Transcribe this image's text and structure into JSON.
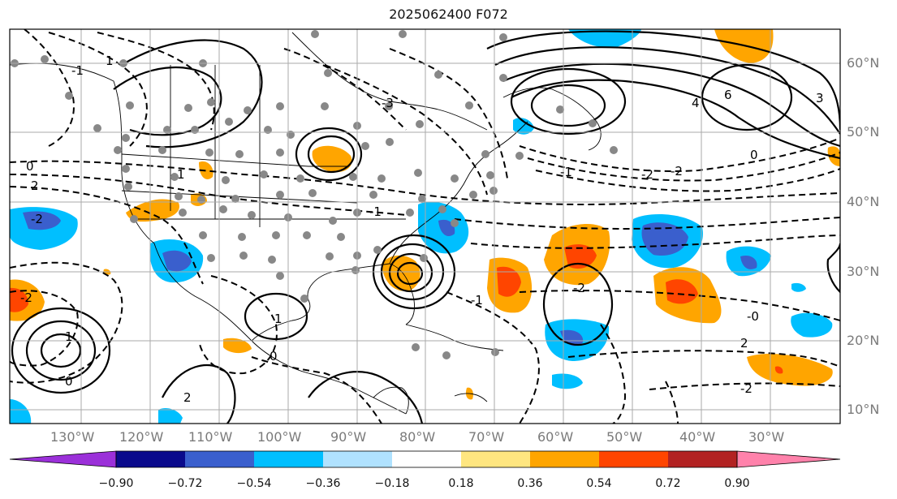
{
  "title": "2025062400 F072",
  "lat_labels": [
    "60°N",
    "50°N",
    "40°N",
    "30°N",
    "20°N",
    "10°N"
  ],
  "lon_labels": [
    "130°W",
    "120°W",
    "110°W",
    "100°W",
    "90°W",
    "80°W",
    "70°W",
    "60°W",
    "50°W",
    "40°W",
    "30°W"
  ],
  "colorbar": {
    "ticks": [
      "−0.90",
      "−0.72",
      "−0.54",
      "−0.36",
      "−0.18",
      "0.18",
      "0.36",
      "0.54",
      "0.72",
      "0.90"
    ],
    "colors": [
      "#9b30d9",
      "#0a0a8c",
      "#3a5fcd",
      "#00bfff",
      "#b0e2ff",
      "#ffffff",
      "#ffe680",
      "#ffa500",
      "#ff4500",
      "#b22222",
      "#ff82ab"
    ]
  },
  "contour_labels": [
    "-2",
    "0",
    "-1",
    "1",
    "2",
    "-2",
    "1",
    "0",
    "-3",
    "4",
    "6",
    "3",
    "-2",
    "-2",
    "0",
    "-1",
    "-0",
    "2",
    "-2",
    "-1",
    "1",
    "0",
    "-1",
    "-2",
    "1",
    "2"
  ]
}
